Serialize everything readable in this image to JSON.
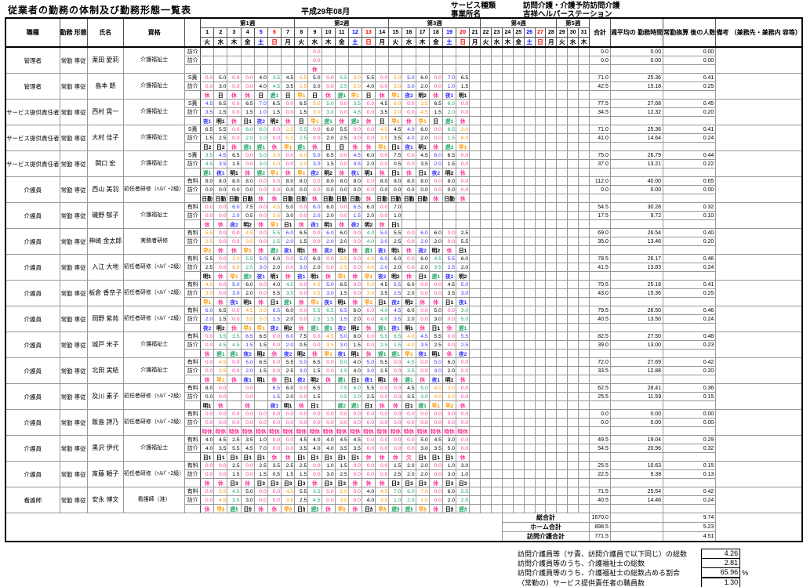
{
  "title": "従業者の勤務の体制及び勤務形態一覧表",
  "month_label": "平成29年08月",
  "service": {
    "type_label": "サービス種類",
    "type_value": "訪問介護・介護予防訪問介護",
    "office_label": "事業所名",
    "office_value": "吉祥ヘルパーステーション"
  },
  "columns": {
    "job": "職種",
    "emp": "勤務\n形態",
    "name": "氏名",
    "qual": "資格",
    "total": "合計",
    "weekly_avg": "週平均の\n勤務時間",
    "fte": "常勤換算\n後の人数",
    "remarks": "備考\n（兼務先・兼務内\n容等）"
  },
  "weeks": [
    {
      "label": "第1週",
      "days": 7
    },
    {
      "label": "第2週",
      "days": 7
    },
    {
      "label": "第3週",
      "days": 7
    },
    {
      "label": "第4週",
      "days": 7
    },
    {
      "label": "第5週",
      "days": 3
    }
  ],
  "weekday_sequence": [
    "火",
    "水",
    "木",
    "金",
    "土",
    "日",
    "月"
  ],
  "num_days": 31,
  "colors": {
    "rest": "#ff3399",
    "early": "#ff9900",
    "late": "#1fa866",
    "night": "#3333ff",
    "day": "#000000",
    "saturday": "#0000ff",
    "sunday": "#ff0000"
  },
  "staff": [
    {
      "job": "管理者",
      "emp": "常勤\n専従",
      "name": "栗田 愛莉",
      "qual": "介護福祉士",
      "row1_label": "訪介",
      "row2_label": "訪介",
      "r1": ",,,,,,,,0.0",
      "r2": ",,,,,,,,0.0",
      "codes": ",,,,,,,,休",
      "t1": [
        "0.0",
        "0.00",
        "0.00"
      ],
      "t2": [
        "0.0",
        "0.00",
        "0.00"
      ]
    },
    {
      "job": "管理者",
      "emp": "常勤\n専従",
      "name": "島本 朗",
      "qual": "介護福祉士",
      "row1_label": "S責",
      "row2_label": "訪介",
      "r1": "0.0,5.0,0.0,0.0,4.0,3.5,4.5,5.5,5.0,0.0,5.5,3.0,5.5,0.0,5.0,5.0,6.0,0.0,7.0,6.5",
      "r2": "0.0,3.0,0.0,0.0,4.0,4.5,3.5,2.5,3.0,0.0,2.5,5.0,4.0,0.0,3.0,3.0,2.0,0.0,1.0,1.5",
      "codes": "休,日,休,休,日,遅1,日,早1,日,休,遅1,早1,日,休,早1,夜2,明2,休,夜1,明1",
      "t1": [
        "71.0",
        "25.36",
        "0.41"
      ],
      "t2": [
        "42.5",
        "15.18",
        "0.25"
      ]
    },
    {
      "job": "サービス提供責任者",
      "emp": "常勤\n専従",
      "name": "西村 晃一",
      "qual": "介護福祉士",
      "row1_label": "S責",
      "row2_label": "訪介",
      "r1": "4.5,6.5,0.0,6.5,7.0,6.5,0.0,6.5,5.0,5.0,0.0,3.5,0.0,4.5,6.0,0.0,3.5,6.5,6.0,0.0",
      "r2": "3.5,1.5,0.0,1.5,1.0,1.5,0.0,1.5,3.0,3.0,0.0,4.5,0.0,3.5,2.0,0.0,4.5,1.5,2.0,0.0",
      "codes": "夜1,明1,休,日1,夜2,明2,休,日,早1,遅1,休,遅2,休,日,早1,休,早1,日,遅1,休",
      "t1": [
        "77.5",
        "27.68",
        "0.45"
      ],
      "t2": [
        "34.5",
        "12.32",
        "0.20"
      ]
    },
    {
      "job": "サービス提供責任者",
      "emp": "常勤\n専従",
      "name": "大村 佳子",
      "qual": "介護福祉士",
      "row1_label": "S責",
      "row2_label": "訪介",
      "r1": "6.5,5.5,0.0,6.0,6.0,0.0,2.5,5.5,0.0,6.0,5.5,0.0,0.0,4.5,4.5,4.0,6.0,0.0,6.5,2.0",
      "r2": "1.5,2.5,0.0,2.0,2.0,0.0,5.5,2.5,0.0,2.0,2.5,0.0,0.0,3.5,3.5,4.0,2.0,0.0,1.5,6.0",
      "codes": "日2,日2,休,遅1,遅1,休,早1,遅1,休,日,日,休,休,早1,日1,夜1,明1,休,遅2,早1",
      "t1": [
        "71.0",
        "25.36",
        "0.41"
      ],
      "t2": [
        "41.0",
        "14.64",
        "0.24"
      ]
    },
    {
      "job": "サービス提供責任者",
      "emp": "常勤\n専従",
      "name": "関口 宏",
      "qual": "介護福祉士",
      "row1_label": "S責",
      "row2_label": "訪介",
      "r1": "3.5,4.5,6.5,0.0,5.0,3.0,0.0,6.0,5.0,6.5,0.0,4.5,6.0,0.0,7.5,0.0,4.5,6.0,6.5,0.0",
      "r2": "4.5,3.5,1.5,0.0,3.0,5.0,0.0,2.0,3.0,1.5,0.0,3.5,2.0,0.0,0.5,0.0,3.5,2.0,1.5,0.0",
      "codes": "遅1,夜1,明1,休,遅2,早1,休,早1,夜2,明2,休,夜1,明1,休,日1,休,日1,夜2,明2,休",
      "t1": [
        "75.0",
        "26.79",
        "0.44"
      ],
      "t2": [
        "37.0",
        "13.21",
        "0.22"
      ]
    },
    {
      "job": "介護員",
      "emp": "常勤\n専従",
      "name": "西山 美羽",
      "qual": "初任者研修（ﾍﾙﾊﾟｰ2級）",
      "row1_label": "有料",
      "row2_label": "訪介",
      "r1": "8.0,8.0,8.0,8.0,0.0,0.0,8.0,8.0,0.0,8.0,8.0,8.0,0.0,8.0,8.0,8.0,8.0,0.0,8.0,0.0",
      "r2": "0.0,0.0,0.0,0.0,0.0,0.0,0.0,0.0,0.0,0.0,0.0,0.0,0.0,0.0,0.0,0.0,0.0,0.0,0.0,0.0",
      "codes": "日勤,日勤,日勤,日勤,休,休,日勤,日勤,休,日勤,日勤,日勤,休,日勤,日勤,日勤,日勤,休,日勤,休",
      "t1": [
        "112.0",
        "40.00",
        "0.65"
      ],
      "t2": [
        "0.0",
        "0.00",
        "0.00"
      ]
    },
    {
      "job": "介護員",
      "emp": "常勤\n専従",
      "name": "磯野 郁子",
      "qual": "介護福祉士",
      "row1_label": "有料",
      "row2_label": "訪介",
      "r1": "0.0,0.0,6.0,7.5,0.0,4.5,5.0,0.0,6.0,6.0,0.0,6.5,6.0,0.0,7.0",
      "r2": "0.0,0.0,2.0,0.5,0.0,3.5,3.0,0.0,2.0,2.0,0.0,1.5,2.0,0.0,1.0",
      "codes": "休,休,夜2,明2,休,早1,日1,休,夜1,明1,休,夜2,明2,休,日1",
      "t1": [
        "54.5",
        "30.28",
        "0.32"
      ],
      "t2": [
        "17.5",
        "9.72",
        "0.10"
      ]
    },
    {
      "job": "介護員",
      "emp": "常勤\n専従",
      "name": "神崎 金太郎",
      "qual": "実務者研修",
      "row1_label": "有料",
      "row2_label": "訪介",
      "r1": "5.5,0.0,0.0,4.5,0.0,5.5,6.0,6.5,0.0,6.0,6.0,0.0,4.0,5.0,5.5,0.0,6.0,6.0,0.0,2.5",
      "r2": "2.5,0.0,0.0,3.5,0.0,2.5,2.0,1.5,0.0,2.0,2.0,0.0,4.0,3.0,2.5,0.0,2.0,2.0,0.0,5.5",
      "codes": "早2,休,休,早1,休,遅2,夜1,明1,休,夜2,明2,休,遅1,夜1,明1,休,夜2,明2,休,日1",
      "t1": [
        "69.0",
        "26.54",
        "0.40"
      ],
      "t2": [
        "35.0",
        "13.46",
        "0.20"
      ]
    },
    {
      "job": "介護員",
      "emp": "常勤\n専従",
      "name": "入江 大地",
      "qual": "初任者研修（ﾍﾙﾊﾟｰ2級）",
      "row1_label": "有料",
      "row2_label": "訪介",
      "r1": "5.5,0.0,2.0,5.5,5.0,6.0,0.0,5.0,6.0,0.0,5.5,0.0,4.0,6.0,6.0,0.0,6.0,4.5,5.5,6.0",
      "r2": "2.5,0.0,6.0,2.5,3.0,2.0,0.0,3.0,2.0,0.0,2.5,0.0,4.0,2.0,2.0,0.0,2.0,3.5,2.5,2.0",
      "codes": "明1,休,早1,遅2,夜1,明1,休,夜1,明1,休,早1,休,早1,夜2,明2,休,日1,遅1,夜2,明2",
      "t1": [
        "78.5",
        "26.17",
        "0.46"
      ],
      "t2": [
        "41.5",
        "13.83",
        "0.24"
      ]
    },
    {
      "job": "介護員",
      "emp": "常勤\n専従",
      "name": "板倉 香奈子",
      "qual": "初任者研修（ﾍﾙﾊﾟｰ2級）",
      "row1_label": "有料",
      "row2_label": "訪介",
      "r1": "4.5,0.0,5.0,6.0,0.0,4.0,4.5,0.0,4.5,5.0,6.5,0.0,5.0,4.5,5.5,6.0,0.0,0.0,4.5,5.0",
      "r2": "3.5,0.0,3.0,2.0,0.0,5.5,3.5,0.0,3.5,3.0,1.5,0.0,3.0,3.5,2.5,2.0,0.0,0.0,3.5,3.0",
      "codes": "早1,休,夜1,明1,休,日1,遅1,休,早1,夜1,明1,休,早2,日1,夜2,明2,休,休,日1,夜1",
      "t1": [
        "70.5",
        "25.18",
        "0.41"
      ],
      "t2": [
        "43.0",
        "15.36",
        "0.25"
      ]
    },
    {
      "job": "介護員",
      "emp": "常勤\n専従",
      "name": "岡野 紫苑",
      "qual": "初任者研修（ﾍﾙﾊﾟｰ2級）",
      "row1_label": "有料",
      "row2_label": "訪介",
      "r1": "6.0,6.5,0.0,4.5,3.0,6.5,6.0,0.0,5.5,6.5,6.5,6.0,0.0,4.0,4.5,6.0,0.0,5.0,0.0,3.0",
      "r2": "2.0,1.5,0.0,3.5,5.0,1.5,2.0,0.0,2.5,1.5,1.5,2.0,0.0,4.0,3.5,2.0,0.0,3.0,0.0,5.0",
      "codes": "夜2,明2,休,早1,早1,夜2,明2,休,遅1,遅1,夜2,明2,休,遅1,夜1,明1,休,日1,休,遅1",
      "t1": [
        "79.5",
        "26.50",
        "0.46"
      ],
      "t2": [
        "40.5",
        "13.50",
        "0.24"
      ]
    },
    {
      "job": "介護員",
      "emp": "常勤\n専従",
      "name": "城戸 米子",
      "qual": "介護福祉士",
      "row1_label": "有料",
      "row2_label": "訪介",
      "r1": "0.0,3.5,3.5,6.5,6.5,0.0,6.0,7.5,0.0,4.5,5.0,8.0,0.0,5.5,6.5,4.0,4.5,5.5,0.0,5.5",
      "r2": "0.0,4.5,4.5,1.5,1.5,0.0,2.0,0.5,0.0,3.5,3.0,1.5,0.0,2.5,1.5,4.0,3.5,2.5,0.0,2.5",
      "codes": "休,遅1,遅1,夜2,明2,休,夜2,明2,休,早1,夜1,明1,休,遅1,遅1,早1,夜1,明1,休,夜2",
      "t1": [
        "82.5",
        "27.50",
        "0.48"
      ],
      "t2": [
        "39.0",
        "13.00",
        "0.23"
      ]
    },
    {
      "job": "介護員",
      "emp": "常勤\n専従",
      "name": "北田 実結",
      "qual": "介護福祉士",
      "row1_label": "有料",
      "row2_label": "訪介",
      "r1": "0.0,4.5,0.0,6.0,6.5,0.0,5.5,5.0,6.5,0.0,8.0,4.0,5.0,5.5,0.0,4.5,0.0,5.0,6.0,0.0",
      "r2": "0.0,3.5,0.0,2.0,1.5,0.0,2.5,3.0,1.5,0.0,1.5,4.0,3.0,2.5,0.0,3.5,0.0,3.0,2.0,0.0",
      "codes": "休,早1,休,夜1,明1,休,日1,夜2,明2,休,遅1,日1,夜1,明1,休,遅1,休,夜1,明1,休",
      "t1": [
        "72.0",
        "27.69",
        "0.42"
      ],
      "t2": [
        "33.5",
        "12.88",
        "0.20"
      ]
    },
    {
      "job": "介護員",
      "emp": "常勤\n専従",
      "name": "及川 素子",
      "qual": "初任者研修（ﾍﾙﾊﾟｰ2級）",
      "row1_label": "有料",
      "row2_label": "訪介",
      "r1": "8.0,0.0,,0.0,,6.5,6.0,0.0,6.5,,7.5,6.0,5.5,0.0,0.0,4.5,5.0,4.0,3.0,0.0",
      "r2": "0.0,0.0,,0.0,,1.5,2.0,0.0,1.5,,0.5,2.0,2.5,0.0,0.0,3.5,3.0,4.0,5.0,0.0",
      "codes": "明1,休,,休,,夜1,明1,休,日1,,遅2,遅1,日1,休,休,日1,遅1,早1,早2,休",
      "t1": [
        "62.5",
        "28.41",
        "0.36"
      ],
      "t2": [
        "25.5",
        "11.59",
        "0.15"
      ]
    },
    {
      "job": "介護員",
      "emp": "常勤\n専従",
      "name": "飯島 詩乃",
      "qual": "初任者研修（ﾍﾙﾊﾟｰ2級）",
      "row1_label": "有料",
      "row2_label": "訪介",
      "r1": "0.0,0.0,0.0,0.0,0.0,0.0,0.0,0.0,0.0,0.0,0.0,0.0,0.0,0.0,0.0,0.0,0.0,0.0,0.0,0.0",
      "r2": "0.0,0.0,0.0,0.0,0.0,0.0,0.0,0.0,0.0,0.0,0.0,0.0,0.0,0.0,0.0,0.0,0.0,0.0,0.0,0.0",
      "codes": "特休,特休,特休,特休,特休,特休,特休,特休,特休,特休,特休,特休,特休,特休,特休,特休,特休,特休,特休,特休",
      "t1": [
        "0.0",
        "0.00",
        "0.00"
      ],
      "t2": [
        "0.0",
        "0.00",
        "0.00"
      ]
    },
    {
      "job": "介護員",
      "emp": "常勤\n専従",
      "name": "黒沢 伊代",
      "qual": "介護福祉士",
      "row1_label": "有料",
      "row2_label": "訪介",
      "r1": "4.0,4.5,2.5,3.5,1.0,0.0,0.0,4.5,4.0,4.0,4.5,4.5,0.0,0.0,0.0,0.0,5.0,4.5,3.0,0.0",
      "r2": "4.0,3.5,5.5,4.5,7.0,0.0,0.0,3.5,4.0,4.0,3.5,3.5,0.0,0.0,0.0,0.0,3.0,3.5,5.0,0.0",
      "codes": "日1,日1,日1,日1,日1,休,休,日1,日1,日1,日1,日1,休,休,休,欠,日1,日1,日1,休",
      "t1": [
        "49.5",
        "19.04",
        "0.29"
      ],
      "t2": [
        "54.5",
        "20.96",
        "0.32"
      ]
    },
    {
      "job": "介護員",
      "emp": "常勤\n専従",
      "name": "斎藤 頼子",
      "qual": "初任者研修（ﾍﾙﾊﾟｰ2級）",
      "row1_label": "有料",
      "row2_label": "訪介",
      "r1": "0.0,0.0,2.5,0.0,2.5,3.5,2.5,2.5,0.0,1.0,1.5,0.0,0.0,0.0,1.5,2.0,2.0,0.0,1.0,3.0",
      "r2": "0.0,0.0,1.5,0.0,1.5,0.5,1.5,1.5,0.0,3.0,2.5,0.0,0.0,0.0,2.5,2.0,2.0,0.0,3.0,1.0",
      "codes": "休,休,日3,休,日3,日3,日3,日3,休,日3,日3,休,休,休,日3,日3,日3,休,日3,日3",
      "t1": [
        "25.5",
        "10.63",
        "0.15"
      ],
      "t2": [
        "22.5",
        "9.38",
        "0.13"
      ]
    },
    {
      "job": "看護師",
      "emp": "常勤\n専従",
      "name": "安永 博文",
      "qual": "看護師（准）",
      "row1_label": "有料",
      "row2_label": "訪介",
      "r1": "0.0,3.5,4.5,5.0,0.0,0.0,4.5,5.5,3.5,0.0,5.0,0.0,4.0,4.5,7.0,6.0,7.0,0.0,6.0,5.5",
      "r2": "0.0,4.5,3.5,3.0,0.0,0.0,3.5,2.5,4.5,0.0,3.0,0.0,4.0,3.5,1.0,2.0,1.0,0.0,2.0,2.5",
      "codes": "休,早ｶ,遅ｶ,日ｶ,休,休,早ｶ,日ｶ,遅ｶ,休,早ｶ,休,日ｶ,早ｶ,遅ｶ,遅ｶ,早ｶ,休,日ｶ,遅ｶ",
      "t1": [
        "71.5",
        "25.54",
        "0.42"
      ],
      "t2": [
        "40.5",
        "14.46",
        "0.24"
      ]
    }
  ],
  "summary": [
    {
      "label": "総合計",
      "total": "1670.0",
      "fte": "9.74"
    },
    {
      "label": "ホーム合計",
      "total": "898.5",
      "fte": "5.23"
    },
    {
      "label": "訪問介護合計",
      "total": "771.5",
      "fte": "4.51"
    }
  ],
  "notes": [
    {
      "label": "訪問介護員等（サ責、訪問介護員で以下同じ）の総数",
      "value": "4.26",
      "suffix": ""
    },
    {
      "label": "訪問介護員等のうち、介護福祉士の総数",
      "value": "2.81",
      "suffix": ""
    },
    {
      "label": "訪問介護員等のうち、介護福祉士の総数占める割合",
      "value": "65.96",
      "suffix": "%"
    },
    {
      "label": "（常勤の）サービス提供責任者の職員数",
      "value": "1.30",
      "suffix": ""
    }
  ]
}
